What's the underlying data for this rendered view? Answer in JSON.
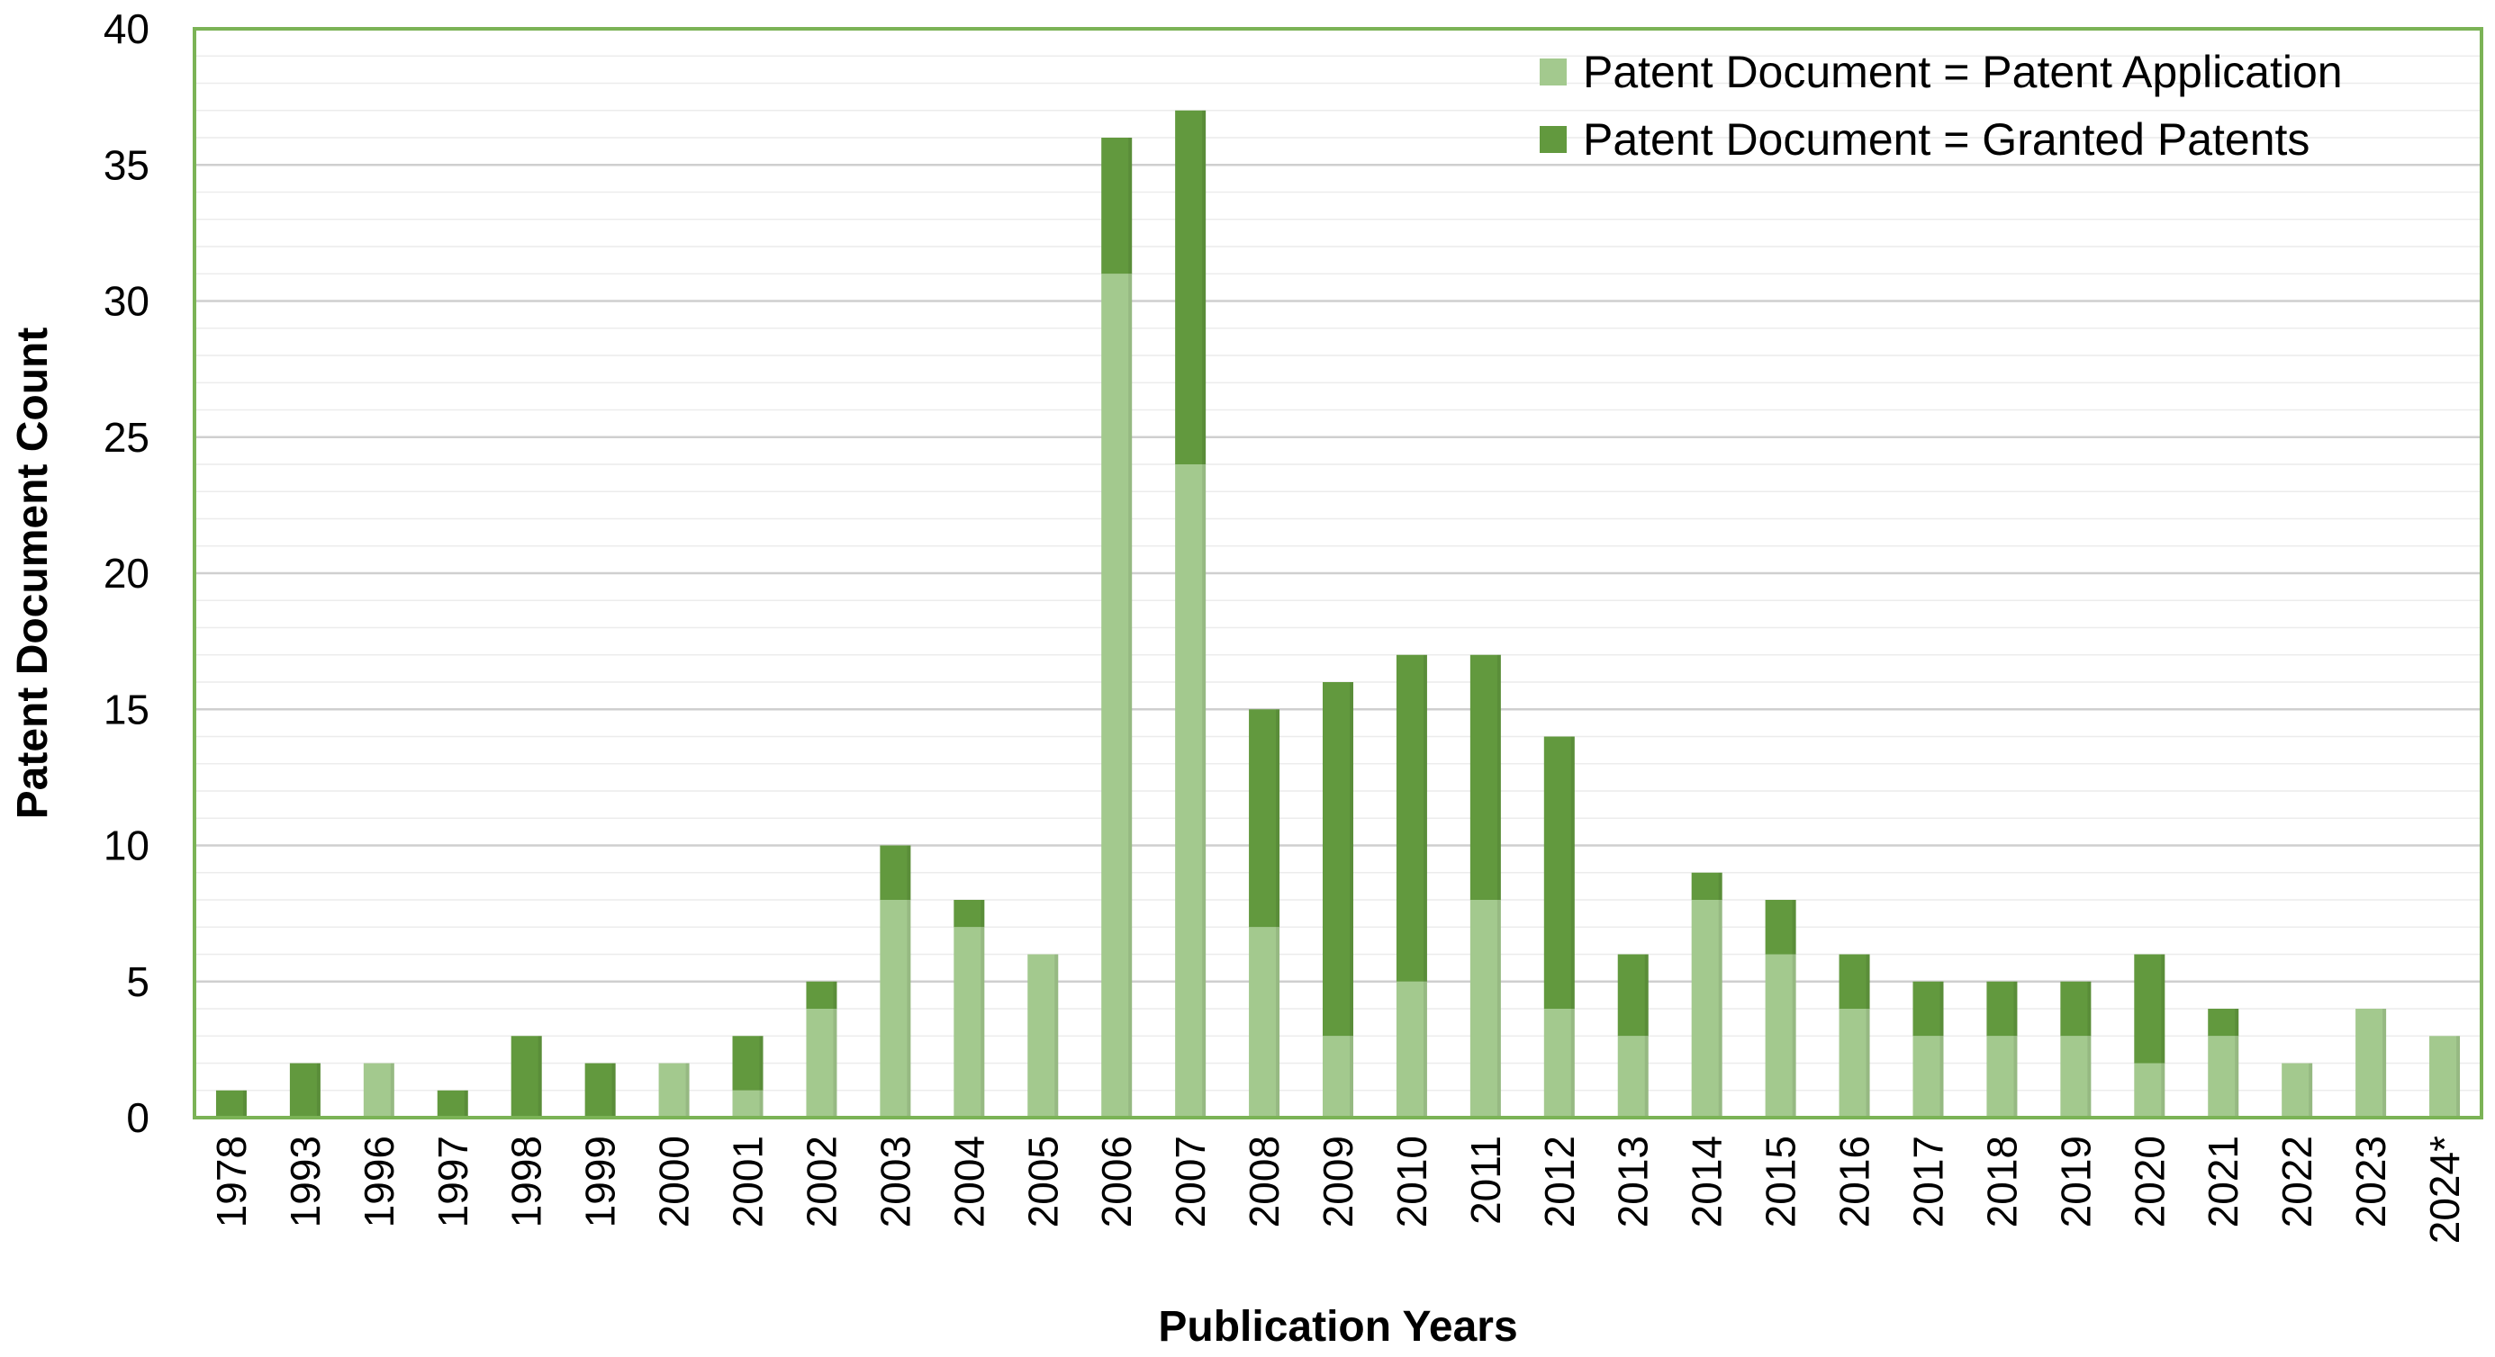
{
  "chart_data": {
    "type": "bar",
    "stacked": true,
    "title": "",
    "xlabel": "Publication Years",
    "ylabel": "Patent Document Count",
    "ylim": [
      0,
      40
    ],
    "y_ticks": [
      0,
      5,
      10,
      15,
      20,
      25,
      30,
      35,
      40
    ],
    "grid": true,
    "legend_position": "top-right",
    "categories": [
      "1978",
      "1993",
      "1996",
      "1997",
      "1998",
      "1999",
      "2000",
      "2001",
      "2002",
      "2003",
      "2004",
      "2005",
      "2006",
      "2007",
      "2008",
      "2009",
      "2010",
      "2011",
      "2012",
      "2013",
      "2014",
      "2015",
      "2016",
      "2017",
      "2018",
      "2019",
      "2020",
      "2021",
      "2022",
      "2023",
      "2024*"
    ],
    "series": [
      {
        "name": "Patent Document = Patent Application",
        "color": "#a3c98e",
        "values": [
          0,
          0,
          2,
          0,
          0,
          0,
          2,
          1,
          4,
          8,
          7,
          6,
          31,
          24,
          7,
          3,
          5,
          8,
          4,
          3,
          8,
          6,
          4,
          3,
          3,
          3,
          2,
          3,
          2,
          4,
          3
        ]
      },
      {
        "name": "Patent Document = Granted Patents",
        "color": "#62993e",
        "values": [
          1,
          2,
          0,
          1,
          3,
          2,
          0,
          2,
          1,
          2,
          1,
          0,
          5,
          13,
          8,
          13,
          12,
          9,
          10,
          3,
          1,
          2,
          2,
          2,
          2,
          2,
          4,
          1,
          0,
          0,
          0
        ]
      }
    ],
    "colors": {
      "frame": "#7bb356",
      "grid": "#d9d9d9"
    }
  }
}
